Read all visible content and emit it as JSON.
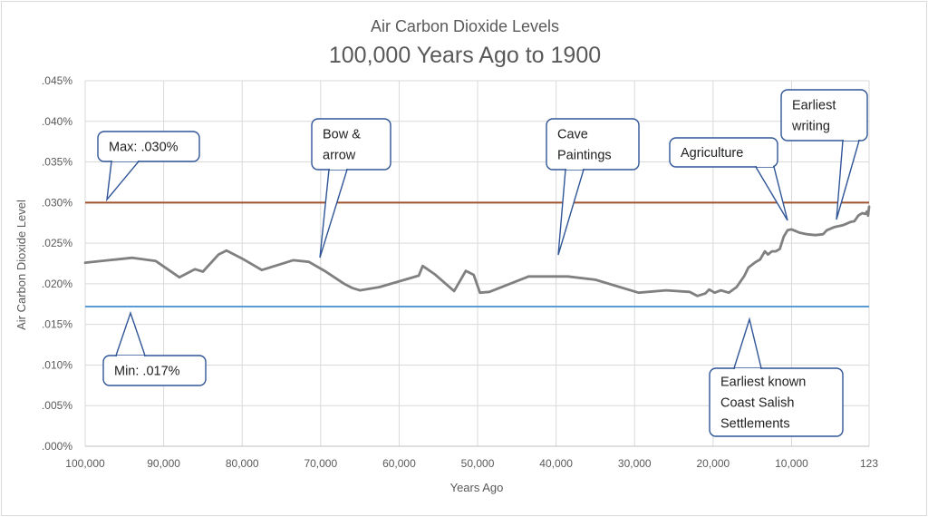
{
  "chart_data": {
    "type": "line",
    "title": "Air Carbon Dioxide Levels",
    "subtitle": "100,000 Years Ago to 1900",
    "xlabel": "Years Ago",
    "ylabel": "Air Carbon Dioxide Level",
    "xlim": [
      100000,
      123
    ],
    "x_reversed": true,
    "ylim": [
      0,
      0.045
    ],
    "grid": true,
    "x_ticks": [
      100000,
      90000,
      80000,
      70000,
      60000,
      50000,
      40000,
      30000,
      20000,
      10000,
      123
    ],
    "x_tick_labels": [
      "100,000",
      "90,000",
      "80,000",
      "70,000",
      "60,000",
      "50,000",
      "40,000",
      "30,000",
      "20,000",
      "10,000",
      "123"
    ],
    "y_ticks": [
      0,
      0.005,
      0.01,
      0.015,
      0.02,
      0.025,
      0.03,
      0.035,
      0.04,
      0.045
    ],
    "y_tick_labels": [
      ".000%",
      ".005%",
      ".010%",
      ".015%",
      ".020%",
      ".025%",
      ".030%",
      ".035%",
      ".040%",
      ".045%"
    ],
    "reference_lines": [
      {
        "y": 0.03,
        "color": "#a0522d"
      },
      {
        "y": 0.0172,
        "color": "#5b9bd5"
      }
    ],
    "series": [
      {
        "color": "#808080",
        "points": [
          [
            100000,
            0.0226
          ],
          [
            97000,
            0.0229
          ],
          [
            94000,
            0.0232
          ],
          [
            91000,
            0.0228
          ],
          [
            88000,
            0.0208
          ],
          [
            86000,
            0.0218
          ],
          [
            85000,
            0.0215
          ],
          [
            83000,
            0.0236
          ],
          [
            82000,
            0.0241
          ],
          [
            80000,
            0.0231
          ],
          [
            77500,
            0.0217
          ],
          [
            73500,
            0.0229
          ],
          [
            71500,
            0.0227
          ],
          [
            69500,
            0.0216
          ],
          [
            67000,
            0.02
          ],
          [
            66000,
            0.0195
          ],
          [
            65000,
            0.0192
          ],
          [
            62500,
            0.0196
          ],
          [
            57500,
            0.021
          ],
          [
            57000,
            0.0222
          ],
          [
            55500,
            0.0212
          ],
          [
            53000,
            0.0191
          ],
          [
            51500,
            0.0216
          ],
          [
            50500,
            0.0211
          ],
          [
            49700,
            0.0189
          ],
          [
            48500,
            0.019
          ],
          [
            43500,
            0.0209
          ],
          [
            38500,
            0.0209
          ],
          [
            35000,
            0.0205
          ],
          [
            29500,
            0.0189
          ],
          [
            26000,
            0.0192
          ],
          [
            23000,
            0.019
          ],
          [
            22000,
            0.0185
          ],
          [
            21000,
            0.0188
          ],
          [
            20500,
            0.0193
          ],
          [
            19800,
            0.0189
          ],
          [
            19000,
            0.0192
          ],
          [
            18000,
            0.0189
          ],
          [
            17000,
            0.0196
          ],
          [
            16000,
            0.021
          ],
          [
            15500,
            0.022
          ],
          [
            14700,
            0.0226
          ],
          [
            14000,
            0.023
          ],
          [
            13400,
            0.024
          ],
          [
            13000,
            0.0236
          ],
          [
            12500,
            0.024
          ],
          [
            12000,
            0.024
          ],
          [
            11500,
            0.0243
          ],
          [
            11000,
            0.0258
          ],
          [
            10500,
            0.0266
          ],
          [
            10000,
            0.0267
          ],
          [
            9500,
            0.0265
          ],
          [
            9000,
            0.0263
          ],
          [
            8000,
            0.0261
          ],
          [
            7000,
            0.026
          ],
          [
            6000,
            0.0261
          ],
          [
            5500,
            0.0266
          ],
          [
            4500,
            0.027
          ],
          [
            3500,
            0.0272
          ],
          [
            2500,
            0.0276
          ],
          [
            2000,
            0.0277
          ],
          [
            1500,
            0.0284
          ],
          [
            1000,
            0.0287
          ],
          [
            600,
            0.0286
          ],
          [
            400,
            0.0289
          ],
          [
            250,
            0.0284
          ],
          [
            123,
            0.0295
          ]
        ]
      }
    ],
    "annotations": [
      {
        "text": [
          "Max: .030%"
        ]
      },
      {
        "text": [
          "Min: .017%"
        ]
      },
      {
        "text": [
          "Bow &",
          "arrow"
        ]
      },
      {
        "text": [
          "Cave",
          "Paintings"
        ]
      },
      {
        "text": [
          "Agriculture"
        ]
      },
      {
        "text": [
          "Earliest",
          "writing"
        ]
      },
      {
        "text": [
          "Earliest known",
          "Coast Salish",
          "Settlements"
        ]
      }
    ]
  }
}
